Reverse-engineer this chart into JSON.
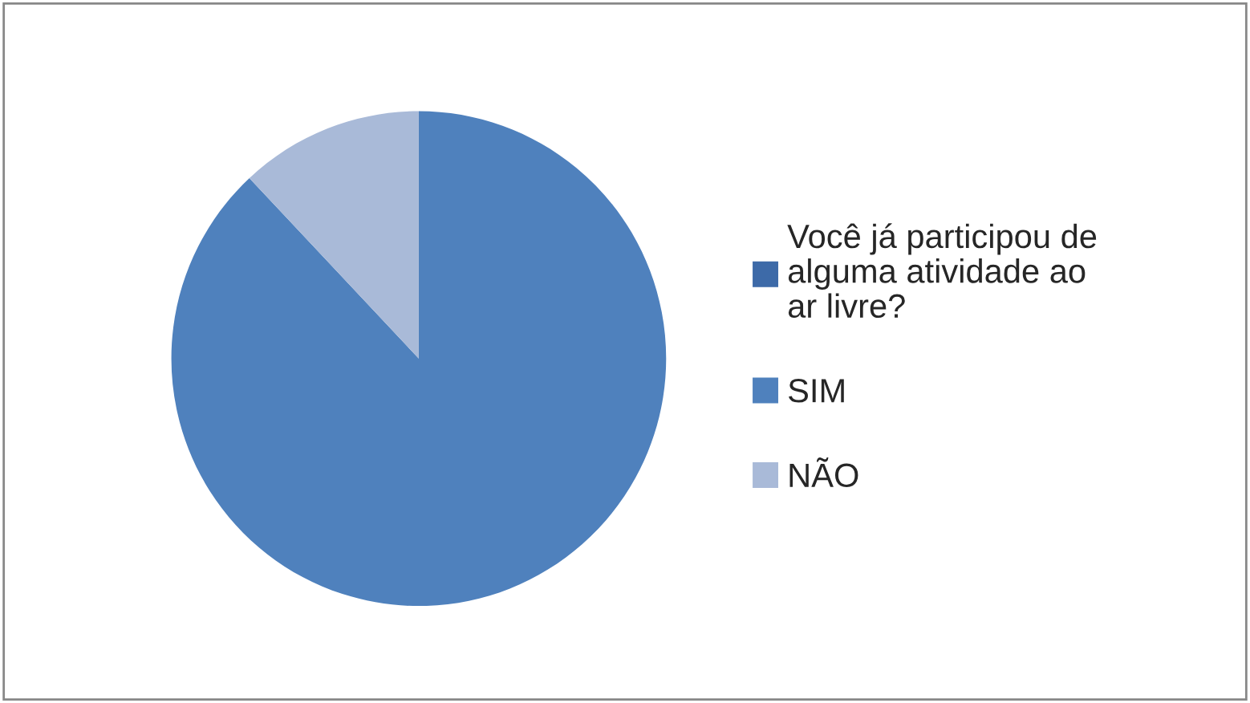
{
  "chart_data": {
    "type": "pie",
    "categories": [
      "Você já participou de\nalguma atividade ao\nar livre?",
      "SIM",
      "NÃO"
    ],
    "values": [
      0,
      88,
      12
    ],
    "colors": [
      "#3d6aa8",
      "#4f81bd",
      "#a9bad8"
    ],
    "legend": "right"
  }
}
